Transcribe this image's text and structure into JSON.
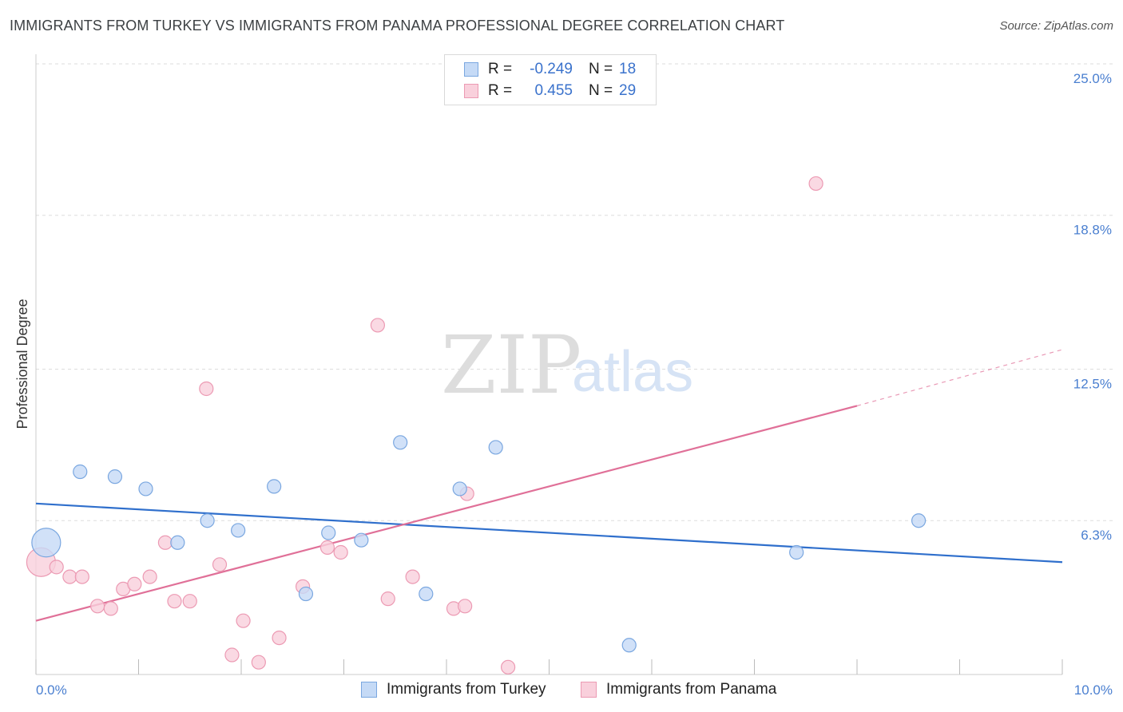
{
  "title": "IMMIGRANTS FROM TURKEY VS IMMIGRANTS FROM PANAMA PROFESSIONAL DEGREE CORRELATION CHART",
  "source": "Source: ZipAtlas.com",
  "watermark": {
    "zip": "ZIP",
    "atlas": "atlas"
  },
  "legend": {
    "series": [
      {
        "r_label": "R =",
        "r_value": "-0.249",
        "n_label": "N =",
        "n_value": "18"
      },
      {
        "r_label": "R =",
        "r_value": "0.455",
        "n_label": "N =",
        "n_value": "29"
      }
    ]
  },
  "colors": {
    "turkey_fill": "#c5daf6",
    "turkey_stroke": "#7aa7e0",
    "turkey_line": "#2f6fcc",
    "panama_fill": "#f9d0dc",
    "panama_stroke": "#ec9ab3",
    "panama_line": "#e07098",
    "tick_text": "#4a7fd0",
    "grid": "#dddddd"
  },
  "chart_data": {
    "type": "scatter",
    "title": "IMMIGRANTS FROM TURKEY VS IMMIGRANTS FROM PANAMA PROFESSIONAL DEGREE CORRELATION CHART",
    "xlabel": "",
    "ylabel": "Professional Degree",
    "xlim": [
      0.0,
      10.0
    ],
    "ylim": [
      0.0,
      25.0
    ],
    "x_tick_labels": [
      "0.0%",
      "10.0%"
    ],
    "y_ticks": [
      6.3,
      12.5,
      18.8,
      25.0
    ],
    "y_tick_labels": [
      "6.3%",
      "12.5%",
      "18.8%",
      "25.0%"
    ],
    "grid": true,
    "series": [
      {
        "name": "Immigrants from Turkey",
        "points": [
          {
            "x": 0.1,
            "y": 5.4,
            "big": true
          },
          {
            "x": 0.43,
            "y": 8.3
          },
          {
            "x": 0.77,
            "y": 8.1
          },
          {
            "x": 1.07,
            "y": 7.6
          },
          {
            "x": 1.38,
            "y": 5.4
          },
          {
            "x": 1.67,
            "y": 6.3
          },
          {
            "x": 1.97,
            "y": 5.9
          },
          {
            "x": 2.32,
            "y": 7.7
          },
          {
            "x": 2.63,
            "y": 3.3
          },
          {
            "x": 2.85,
            "y": 5.8
          },
          {
            "x": 3.17,
            "y": 5.5
          },
          {
            "x": 3.55,
            "y": 9.5
          },
          {
            "x": 3.8,
            "y": 3.3
          },
          {
            "x": 4.13,
            "y": 7.6
          },
          {
            "x": 4.48,
            "y": 9.3
          },
          {
            "x": 5.78,
            "y": 1.2
          },
          {
            "x": 7.41,
            "y": 5.0
          },
          {
            "x": 8.6,
            "y": 6.3
          }
        ],
        "trend": {
          "x": [
            0.0,
            10.0
          ],
          "y": [
            7.0,
            4.6
          ]
        }
      },
      {
        "name": "Immigrants from Panama",
        "points": [
          {
            "x": 0.05,
            "y": 4.6,
            "big": true
          },
          {
            "x": 0.2,
            "y": 4.4
          },
          {
            "x": 0.33,
            "y": 4.0
          },
          {
            "x": 0.45,
            "y": 4.0
          },
          {
            "x": 0.6,
            "y": 2.8
          },
          {
            "x": 0.73,
            "y": 2.7
          },
          {
            "x": 0.85,
            "y": 3.5
          },
          {
            "x": 0.96,
            "y": 3.7
          },
          {
            "x": 1.11,
            "y": 4.0
          },
          {
            "x": 1.26,
            "y": 5.4
          },
          {
            "x": 1.35,
            "y": 3.0
          },
          {
            "x": 1.5,
            "y": 3.0
          },
          {
            "x": 1.66,
            "y": 11.7
          },
          {
            "x": 1.79,
            "y": 4.5
          },
          {
            "x": 1.91,
            "y": 0.8
          },
          {
            "x": 2.02,
            "y": 2.2
          },
          {
            "x": 2.17,
            "y": 0.5
          },
          {
            "x": 2.37,
            "y": 1.5
          },
          {
            "x": 2.6,
            "y": 3.6
          },
          {
            "x": 2.84,
            "y": 5.2
          },
          {
            "x": 2.97,
            "y": 5.0
          },
          {
            "x": 3.33,
            "y": 14.3
          },
          {
            "x": 3.43,
            "y": 3.1
          },
          {
            "x": 3.67,
            "y": 4.0
          },
          {
            "x": 4.07,
            "y": 2.7
          },
          {
            "x": 4.18,
            "y": 2.8
          },
          {
            "x": 4.2,
            "y": 7.4
          },
          {
            "x": 4.6,
            "y": 0.3
          },
          {
            "x": 7.6,
            "y": 20.1
          }
        ],
        "trend": {
          "x": [
            0.0,
            8.0
          ],
          "y": [
            2.2,
            11.0
          ]
        },
        "trend_dashed": {
          "x": [
            8.0,
            10.0
          ],
          "y": [
            11.0,
            13.3
          ]
        }
      }
    ]
  },
  "bottom_legend": {
    "turkey": "Immigrants from Turkey",
    "panama": "Immigrants from Panama"
  }
}
